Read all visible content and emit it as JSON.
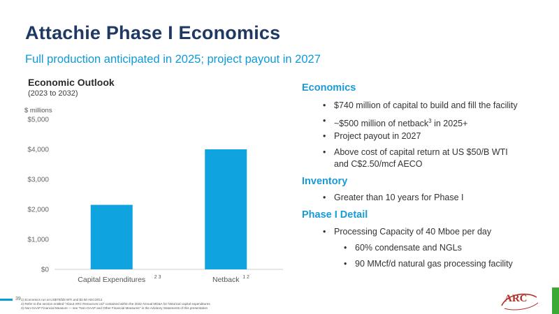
{
  "title": "Attachie Phase I Economics",
  "subtitle": "Full production anticipated in 2025; project payout in 2027",
  "chart_data": {
    "type": "bar",
    "title": "Economic Outlook",
    "subtitle": "(2023 to 2032)",
    "ylabel": "$ millions",
    "categories": [
      "Capital Expenditures",
      "Netback"
    ],
    "category_superscripts": [
      "2 3",
      "1 2"
    ],
    "values": [
      2150,
      4000
    ],
    "ylim": [
      0,
      5000
    ],
    "yticks": [
      0,
      1000,
      2000,
      3000,
      4000,
      5000
    ],
    "ytick_labels": [
      "$0",
      "$1,000",
      "$2,000",
      "$3,000",
      "$4,000",
      "$5,000"
    ],
    "bar_color": "#0fa3e0",
    "grid": false,
    "legend": "none"
  },
  "right": {
    "economics_heading": "Economics",
    "economics_bullets": [
      "$740 million of capital to build and fill the facility",
      "~$500 million of netback",
      "Project payout in 2027",
      "Above cost of capital return at US $50/B WTI",
      "and C$2.50/mcf AECO"
    ],
    "netback_sup": "3",
    "netback_tail": " in 2025+",
    "inventory_heading": "Inventory",
    "inventory_bullets": [
      "Greater than 10 years for Phase I"
    ],
    "detail_heading": "Phase I Detail",
    "detail_bullets": [
      "Processing Capacity of 40 Mboe per day"
    ],
    "detail_sub_bullets": [
      "60% condensate and NGLs",
      "90 MMcf/d natural gas processing facility"
    ]
  },
  "footer": {
    "page_number": "39",
    "notes": [
      "1)  Economics run at US$70/bbl WTI and $3.50 AECO/GJ",
      "2)  Refer to the section entitled \"About ARC Resources Ltd\" contained within the 2022 Annual MD&A for historical capital expenditures",
      "3)  Non-GAAP Financial Measure — see \"Non-GAAP and Other Financial Measures\" in the Advisory Statements of this presentation"
    ],
    "logo_text": "ARC"
  },
  "colors": {
    "navy": "#1f3864",
    "accent_blue": "#0d9ad8",
    "brand_red": "#b0302c",
    "brand_green": "#3aaa35"
  }
}
